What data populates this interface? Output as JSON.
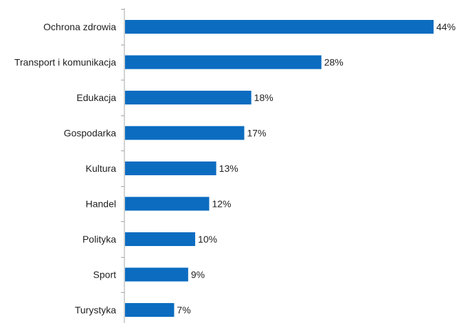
{
  "chart_data": {
    "type": "bar",
    "orientation": "horizontal",
    "categories": [
      "Ochrona zdrowia",
      "Transport i komunikacja",
      "Edukacja",
      "Gospodarka",
      "Kultura",
      "Handel",
      "Polityka",
      "Sport",
      "Turystyka"
    ],
    "values": [
      44,
      28,
      18,
      17,
      13,
      12,
      10,
      9,
      7
    ],
    "value_labels": [
      "44%",
      "28%",
      "18%",
      "17%",
      "13%",
      "12%",
      "10%",
      "9%",
      "7%"
    ],
    "unit": "%",
    "title": "",
    "xlabel": "",
    "ylabel": "",
    "xlim": [
      0,
      44
    ],
    "grid": false,
    "legend": "none",
    "colors": {
      "bar": "#0B6CC0",
      "axis": "#A6A6A6",
      "text": "#1F1F1F"
    }
  }
}
